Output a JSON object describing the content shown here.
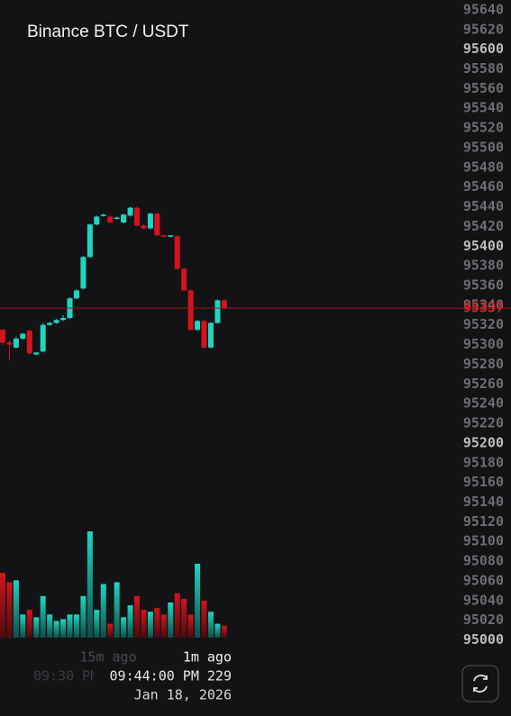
{
  "chart_data": {
    "type": "candlestick",
    "title": "Binance BTC / USDT",
    "up_color": "#1fd6c1",
    "down_color": "#d4141c",
    "open": [
      95315,
      95302,
      95297,
      95306,
      95314,
      95290,
      95293,
      95320,
      95322,
      95325,
      95327,
      95347,
      95357,
      95389,
      95422,
      95431,
      95430,
      95428,
      95424,
      95431,
      95439,
      95421,
      95418,
      95433,
      95411,
      95410,
      95410,
      95377,
      95355,
      95315,
      95324,
      95297,
      95322,
      95345
    ],
    "high": [
      95316,
      95304,
      95308,
      95312,
      95315,
      95292,
      95322,
      95323,
      95326,
      95330,
      95348,
      95356,
      95390,
      95423,
      95431,
      95433,
      95431,
      95430,
      95433,
      95440,
      95440,
      95422,
      95434,
      95434,
      95412,
      95411,
      95411,
      95378,
      95356,
      95325,
      95325,
      95323,
      95346,
      95346
    ],
    "low": [
      95300,
      95284,
      95296,
      95305,
      95290,
      95289,
      95292,
      95319,
      95321,
      95324,
      95326,
      95346,
      95356,
      95388,
      95421,
      95430,
      95423,
      95427,
      95423,
      95430,
      95420,
      95417,
      95417,
      95410,
      95409,
      95409,
      95376,
      95354,
      95314,
      95314,
      95296,
      95296,
      95321,
      95336
    ],
    "close": [
      95302,
      95300,
      95306,
      95311,
      95291,
      95292,
      95320,
      95322,
      95325,
      95327,
      95347,
      95355,
      95389,
      95422,
      95430,
      95432,
      95424,
      95429,
      95432,
      95439,
      95421,
      95418,
      95433,
      95411,
      95410,
      95411,
      95377,
      95355,
      95315,
      95324,
      95297,
      95322,
      95345,
      95337
    ],
    "volume": [
      70,
      60,
      62,
      25,
      30,
      22,
      45,
      25,
      18,
      20,
      25,
      25,
      45,
      115,
      30,
      58,
      15,
      60,
      22,
      35,
      45,
      30,
      28,
      32,
      25,
      38,
      48,
      42,
      25,
      80,
      40,
      28,
      15,
      13
    ],
    "last_price": 95337,
    "ylim": [
      94995,
      95650
    ],
    "yticks": [
      95000,
      95020,
      95040,
      95060,
      95080,
      95100,
      95120,
      95140,
      95160,
      95180,
      95200,
      95220,
      95240,
      95260,
      95280,
      95300,
      95320,
      95340,
      95360,
      95380,
      95400,
      95420,
      95440,
      95460,
      95480,
      95500,
      95520,
      95540,
      95560,
      95580,
      95600,
      95620,
      95640
    ],
    "x_labels": [
      "15m ago",
      "1m ago"
    ],
    "faded_time": "09:30 PM",
    "crosshair_time": "09:44:00 PM 229",
    "crosshair_date": "Jan 18, 2026"
  }
}
